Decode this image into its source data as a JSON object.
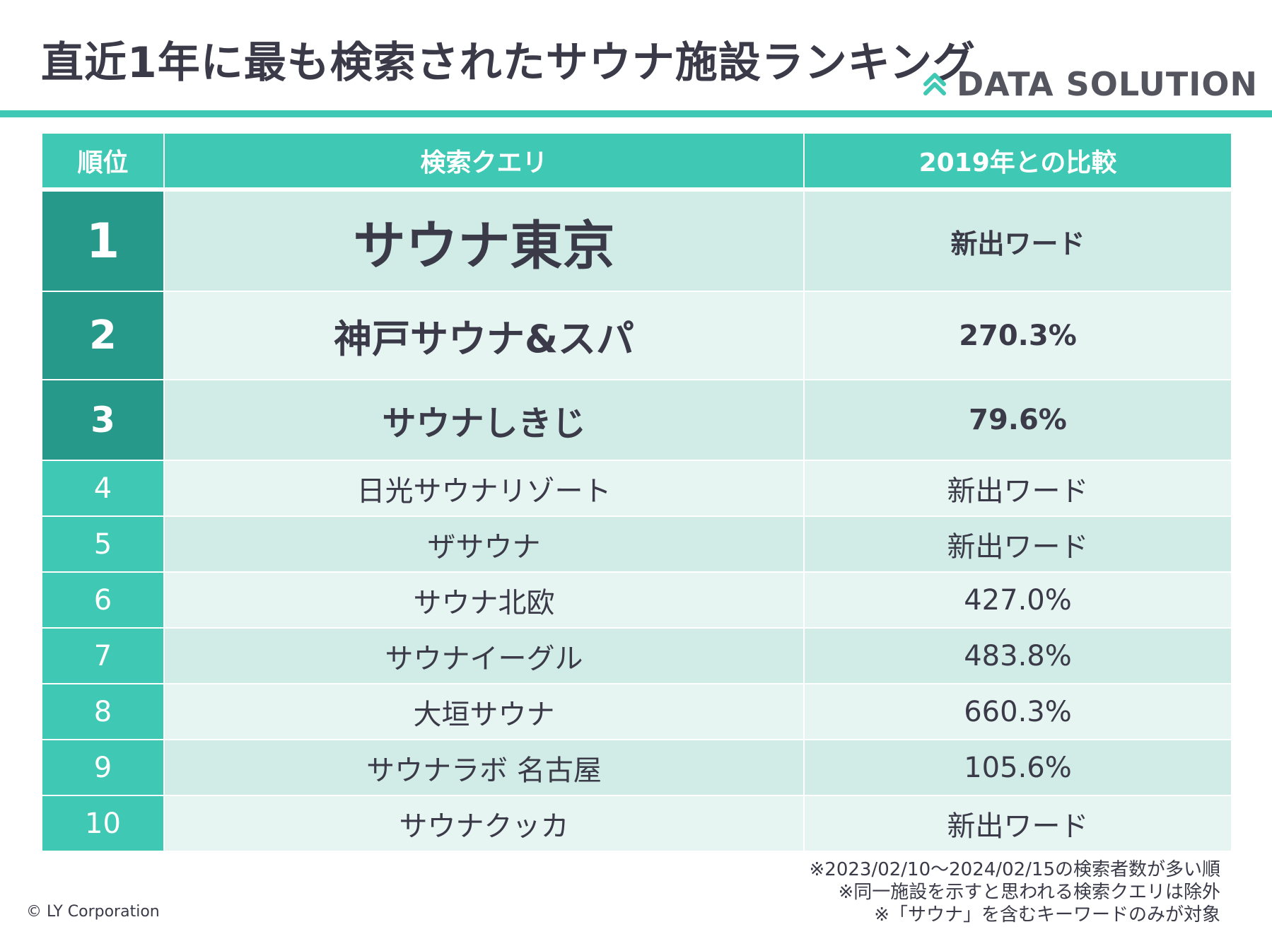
{
  "header": {
    "title": "直近1年に最も検索されたサウナ施設ランキング",
    "brand": "DATA SOLUTION",
    "brand_icon": "double-chevron-up-icon",
    "accent_color": "#3fc8b3"
  },
  "table": {
    "headers": {
      "rank": "順位",
      "query": "検索クエリ",
      "comparison": "2019年との比較"
    },
    "rows": [
      {
        "rank": "1",
        "query": "サウナ東京",
        "comparison": "新出ワード"
      },
      {
        "rank": "2",
        "query": "神戸サウナ&スパ",
        "comparison": "270.3%"
      },
      {
        "rank": "3",
        "query": "サウナしきじ",
        "comparison": "79.6%"
      },
      {
        "rank": "4",
        "query": "日光サウナリゾート",
        "comparison": "新出ワード"
      },
      {
        "rank": "5",
        "query": "ザサウナ",
        "comparison": "新出ワード"
      },
      {
        "rank": "6",
        "query": "サウナ北欧",
        "comparison": "427.0%"
      },
      {
        "rank": "7",
        "query": "サウナイーグル",
        "comparison": "483.8%"
      },
      {
        "rank": "8",
        "query": "大垣サウナ",
        "comparison": "660.3%"
      },
      {
        "rank": "9",
        "query": "サウナラボ 名古屋",
        "comparison": "105.6%"
      },
      {
        "rank": "10",
        "query": "サウナクッカ",
        "comparison": "新出ワード"
      }
    ]
  },
  "notes": [
    "※2023/02/10～2024/02/15の検索者数が多い順",
    "※同一施設を示すと思われる検索クエリは除外",
    "※「サウナ」を含むキーワードのみが対象"
  ],
  "footer": {
    "copyright": "© LY Corporation"
  }
}
